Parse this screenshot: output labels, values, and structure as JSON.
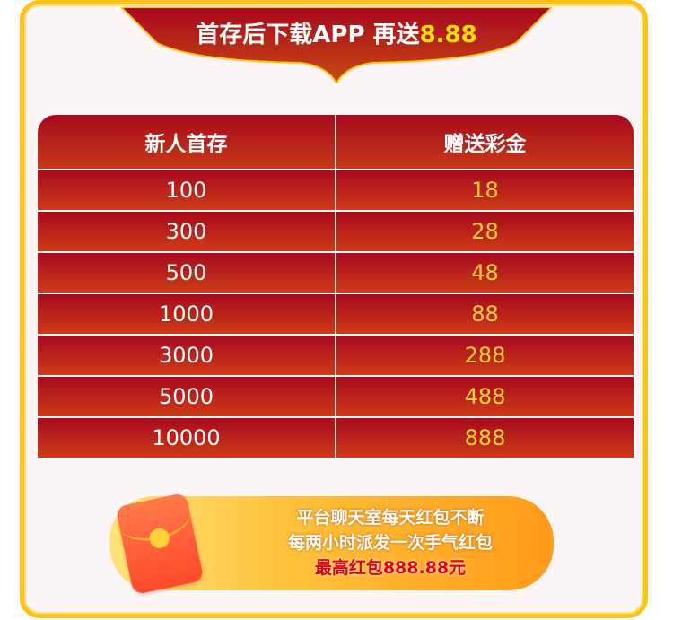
{
  "banner": {
    "title": "首存后下载APP 再送",
    "highlight": "8.88"
  },
  "table": {
    "headers": [
      "新人首存",
      "赠送彩金"
    ],
    "rows": [
      [
        "100",
        "18"
      ],
      [
        "300",
        "28"
      ],
      [
        "500",
        "48"
      ],
      [
        "1000",
        "88"
      ],
      [
        "3000",
        "288"
      ],
      [
        "5000",
        "488"
      ],
      [
        "10000",
        "888"
      ]
    ]
  },
  "promo": {
    "line1": "平台聊天室每天红包不断",
    "line2": "每两小时派发一次手气红包",
    "line3": "最高红包888.88元"
  },
  "colors": {
    "frame": "#ffc21a",
    "table_red": "#a80a1e",
    "bonus_text": "#ffd23a"
  }
}
